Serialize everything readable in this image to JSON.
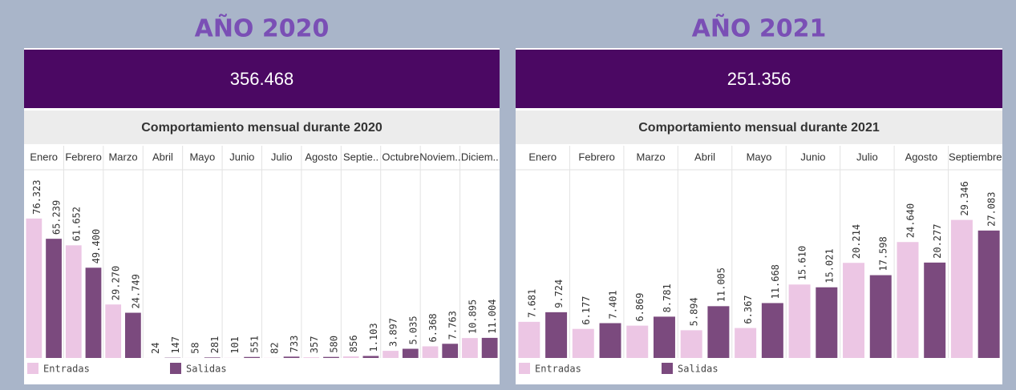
{
  "chart_data": [
    {
      "type": "bar",
      "title": "AÑO 2020",
      "total": "356.468",
      "subtitle": "Comportamiento mensual durante 2020",
      "categories": [
        "Enero",
        "Febrero",
        "Marzo",
        "Abril",
        "Mayo",
        "Junio",
        "Julio",
        "Agosto",
        "Septie..",
        "Octubre",
        "Noviem..",
        "Diciem.."
      ],
      "series": [
        {
          "name": "Entradas",
          "color": "#ecc6e4",
          "values": [
            76323,
            61652,
            29270,
            24,
            58,
            101,
            82,
            357,
            856,
            3897,
            6368,
            10895
          ],
          "value_labels": [
            "76.323",
            "61.652",
            "29.270",
            "24",
            "58",
            "101",
            "82",
            "357",
            "856",
            "3.897",
            "6.368",
            "10.895"
          ]
        },
        {
          "name": "Salidas",
          "color": "#7b4a7e",
          "values": [
            65239,
            49400,
            24749,
            147,
            281,
            551,
            733,
            580,
            1103,
            5035,
            7763,
            11004
          ],
          "value_labels": [
            "65.239",
            "49.400",
            "24.749",
            "147",
            "281",
            "551",
            "733",
            "580",
            "1.103",
            "5.035",
            "7.763",
            "11.004"
          ]
        }
      ],
      "ylim": [
        0,
        103000
      ]
    },
    {
      "type": "bar",
      "title": "AÑO 2021",
      "total": "251.356",
      "subtitle": "Comportamiento mensual durante 2021",
      "categories": [
        "Enero",
        "Febrero",
        "Marzo",
        "Abril",
        "Mayo",
        "Junio",
        "Julio",
        "Agosto",
        "Septiembre"
      ],
      "series": [
        {
          "name": "Entradas",
          "color": "#ecc6e4",
          "values": [
            7681,
            6177,
            6869,
            5894,
            6367,
            15610,
            20214,
            24640,
            29346
          ],
          "value_labels": [
            "7.681",
            "6.177",
            "6.869",
            "5.894",
            "6.367",
            "15.610",
            "20.214",
            "24.640",
            "29.346"
          ]
        },
        {
          "name": "Salidas",
          "color": "#7b4a7e",
          "values": [
            9724,
            7401,
            8781,
            11005,
            11668,
            15021,
            17598,
            20277,
            27083
          ],
          "value_labels": [
            "9.724",
            "7.401",
            "8.781",
            "11.005",
            "11.668",
            "15.021",
            "17.598",
            "20.277",
            "27.083"
          ]
        }
      ],
      "ylim": [
        0,
        40000
      ]
    }
  ]
}
